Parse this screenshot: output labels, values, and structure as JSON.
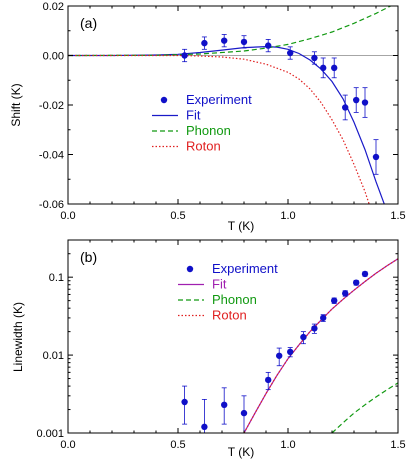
{
  "colors": {
    "experiment": "#1010c8",
    "fit_a": "#1a1ac8",
    "fit_b": "#a020b0",
    "phonon": "#119911",
    "roton": "#e02020",
    "zero_line": "#888888"
  },
  "chart_data": [
    {
      "type": "scatter",
      "panel_label": "(a)",
      "xlabel": "T  (K)",
      "ylabel": "Shift (K)",
      "xlim": [
        0.0,
        1.5
      ],
      "ylim": [
        -0.06,
        0.02
      ],
      "x_ticks": [
        0.0,
        0.5,
        1.0,
        1.5
      ],
      "x_tick_labels": [
        "0.0",
        "0.5",
        "1.0",
        "1.5"
      ],
      "y_ticks": [
        0.02,
        0.0,
        -0.02,
        -0.04,
        -0.06
      ],
      "y_tick_labels": [
        "0.02",
        "0.00",
        "-0.02",
        "-0.04",
        "-0.06"
      ],
      "legend_position": "center",
      "series": [
        {
          "name": "Experiment",
          "kind": "points",
          "color": "#1010c8",
          "x": [
            0.53,
            0.62,
            0.71,
            0.8,
            0.91,
            1.01,
            1.12,
            1.16,
            1.21,
            1.26,
            1.31,
            1.35,
            1.4
          ],
          "y": [
            0.0,
            0.005,
            0.006,
            0.0055,
            0.004,
            0.001,
            -0.001,
            -0.005,
            -0.005,
            -0.021,
            -0.018,
            -0.019,
            -0.041
          ],
          "err": [
            0.0025,
            0.0025,
            0.0025,
            0.0025,
            0.0025,
            0.0025,
            0.0025,
            0.004,
            0.004,
            0.005,
            0.005,
            0.006,
            0.007
          ]
        },
        {
          "name": "Fit",
          "kind": "line",
          "color": "#1a1ac8",
          "x": [
            0.0,
            0.2,
            0.4,
            0.5,
            0.6,
            0.7,
            0.8,
            0.9,
            0.95,
            1.0,
            1.05,
            1.1,
            1.15,
            1.2,
            1.25,
            1.3,
            1.35,
            1.4,
            1.45
          ],
          "y": [
            0.0,
            0.0,
            0.0002,
            0.0005,
            0.0012,
            0.0022,
            0.0032,
            0.0036,
            0.0034,
            0.0025,
            0.0008,
            -0.0018,
            -0.0055,
            -0.0105,
            -0.0175,
            -0.027,
            -0.038,
            -0.051,
            -0.063
          ]
        },
        {
          "name": "Phonon",
          "kind": "line",
          "dash": "dash",
          "color": "#119911",
          "x": [
            0.0,
            0.4,
            0.6,
            0.8,
            0.9,
            1.0,
            1.1,
            1.2,
            1.3,
            1.4,
            1.5
          ],
          "y": [
            0.0,
            0.0001,
            0.0006,
            0.0018,
            0.003,
            0.0045,
            0.0068,
            0.0095,
            0.013,
            0.017,
            0.0215
          ]
        },
        {
          "name": "Roton",
          "kind": "line",
          "dash": "dot",
          "color": "#e02020",
          "x": [
            0.0,
            0.5,
            0.6,
            0.7,
            0.8,
            0.9,
            1.0,
            1.05,
            1.1,
            1.15,
            1.2,
            1.25,
            1.3,
            1.35,
            1.38
          ],
          "y": [
            0.0,
            0.0,
            -0.0002,
            -0.0006,
            -0.0015,
            -0.0035,
            -0.0068,
            -0.0095,
            -0.0135,
            -0.019,
            -0.026,
            -0.034,
            -0.044,
            -0.055,
            -0.063
          ]
        }
      ]
    },
    {
      "type": "scatter",
      "panel_label": "(b)",
      "xlabel": "T  (K)",
      "ylabel": "Linewidth  (K)",
      "xlim": [
        0.0,
        1.5
      ],
      "ylim": [
        0.001,
        0.3
      ],
      "yscale": "log",
      "x_ticks": [
        0.0,
        0.5,
        1.0,
        1.5
      ],
      "x_tick_labels": [
        "0.0",
        "0.5",
        "1.0",
        "1.5"
      ],
      "y_ticks": [
        0.001,
        0.01,
        0.1
      ],
      "y_tick_labels": [
        "0.001",
        "0.01",
        "0.1"
      ],
      "legend_position": "top-center",
      "series": [
        {
          "name": "Experiment",
          "kind": "points",
          "color": "#1010c8",
          "x": [
            0.53,
            0.62,
            0.71,
            0.8,
            0.91,
            0.96,
            1.01,
            1.07,
            1.12,
            1.16,
            1.21,
            1.26,
            1.31,
            1.35
          ],
          "y": [
            0.0025,
            0.0012,
            0.0023,
            0.0018,
            0.0048,
            0.0098,
            0.011,
            0.017,
            0.022,
            0.03,
            0.05,
            0.062,
            0.085,
            0.11
          ],
          "err_low": [
            0.0012,
            0.0003,
            0.001,
            0.0008,
            0.0012,
            0.0025,
            0.0015,
            0.003,
            0.003,
            0.003,
            0.004,
            0.005,
            0.006,
            0.007
          ],
          "err_high": [
            0.0015,
            0.0015,
            0.0015,
            0.0012,
            0.0012,
            0.0025,
            0.0015,
            0.003,
            0.003,
            0.003,
            0.004,
            0.005,
            0.006,
            0.007
          ]
        },
        {
          "name": "Fit",
          "kind": "line",
          "color": "#a020b0",
          "x": [
            0.8,
            0.85,
            0.9,
            0.95,
            1.0,
            1.05,
            1.1,
            1.15,
            1.2,
            1.25,
            1.3,
            1.35,
            1.4,
            1.45,
            1.5
          ],
          "y": [
            0.001,
            0.0018,
            0.0032,
            0.0055,
            0.009,
            0.0135,
            0.02,
            0.028,
            0.039,
            0.052,
            0.068,
            0.088,
            0.112,
            0.14,
            0.172
          ]
        },
        {
          "name": "Phonon",
          "kind": "line",
          "dash": "dash",
          "color": "#119911",
          "x": [
            1.2,
            1.25,
            1.3,
            1.35,
            1.4,
            1.45,
            1.5
          ],
          "y": [
            0.001,
            0.00135,
            0.0018,
            0.0023,
            0.0029,
            0.0036,
            0.0044
          ]
        },
        {
          "name": "Roton",
          "kind": "line",
          "dash": "dot",
          "color": "#e02020",
          "x": [
            0.8,
            0.85,
            0.9,
            0.95,
            1.0,
            1.05,
            1.1,
            1.15,
            1.2,
            1.25,
            1.3,
            1.35,
            1.4,
            1.45,
            1.5
          ],
          "y": [
            0.001,
            0.0018,
            0.0032,
            0.0055,
            0.009,
            0.0135,
            0.02,
            0.028,
            0.039,
            0.052,
            0.068,
            0.088,
            0.112,
            0.14,
            0.172
          ]
        }
      ]
    }
  ]
}
